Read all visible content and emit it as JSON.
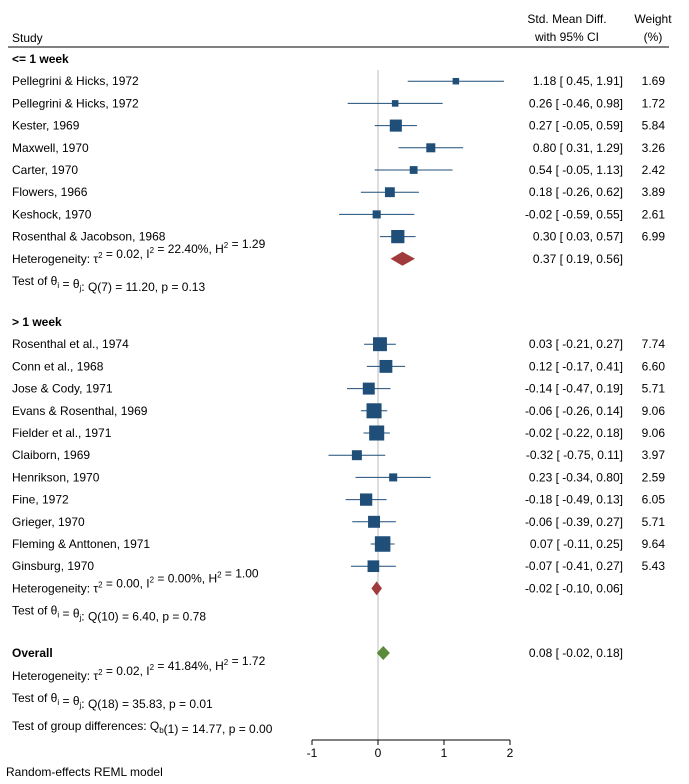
{
  "chart_data": {
    "type": "forest",
    "headers": {
      "study": "Study",
      "effect_line1": "Std. Mean Diff.",
      "effect_line2": "with 95% CI",
      "weight_line1": "Weight",
      "weight_line2": "(%)"
    },
    "x_axis": {
      "min": -1,
      "max": 2,
      "ticks": [
        "-1",
        "0",
        "1",
        "2"
      ],
      "reference_line": 0
    },
    "groups": [
      {
        "label": "<= 1 week",
        "studies": [
          {
            "name": "Pellegrini & Hicks, 1972",
            "est": 1.18,
            "lo": 0.45,
            "hi": 1.91,
            "ci_text": "1.18 [  0.45,  1.91]",
            "weight": "1.69"
          },
          {
            "name": "Pellegrini & Hicks, 1972",
            "est": 0.26,
            "lo": -0.46,
            "hi": 0.98,
            "ci_text": "0.26 [ -0.46,  0.98]",
            "weight": "1.72"
          },
          {
            "name": "Kester, 1969",
            "est": 0.27,
            "lo": -0.05,
            "hi": 0.59,
            "ci_text": "0.27 [ -0.05,  0.59]",
            "weight": "5.84"
          },
          {
            "name": "Maxwell, 1970",
            "est": 0.8,
            "lo": 0.31,
            "hi": 1.29,
            "ci_text": "0.80 [  0.31,  1.29]",
            "weight": "3.26"
          },
          {
            "name": "Carter, 1970",
            "est": 0.54,
            "lo": -0.05,
            "hi": 1.13,
            "ci_text": "0.54 [ -0.05,  1.13]",
            "weight": "2.42"
          },
          {
            "name": "Flowers, 1966",
            "est": 0.18,
            "lo": -0.26,
            "hi": 0.62,
            "ci_text": "0.18 [ -0.26,  0.62]",
            "weight": "3.89"
          },
          {
            "name": "Keshock, 1970",
            "est": -0.02,
            "lo": -0.59,
            "hi": 0.55,
            "ci_text": "-0.02 [ -0.59,  0.55]",
            "weight": "2.61"
          },
          {
            "name": "Rosenthal & Jacobson, 1968",
            "est": 0.3,
            "lo": 0.03,
            "hi": 0.57,
            "ci_text": "0.30 [  0.03,  0.57]",
            "weight": "6.99"
          }
        ],
        "heterogeneity": {
          "prefix": "Heterogeneity: τ",
          "tau2": "= 0.02, I",
          "i2": "= 22.40%, H",
          "h2": "= 1.29"
        },
        "pooled": {
          "est": 0.37,
          "lo": 0.19,
          "hi": 0.56,
          "ci_text": "0.37 [  0.19,  0.56]",
          "color": "#a03a3c"
        },
        "test": {
          "prefix": "Test of θ",
          "mid": " = θ",
          "rest": ": Q(7) = 11.20, p = 0.13"
        }
      },
      {
        "label": "> 1 week",
        "studies": [
          {
            "name": "Rosenthal et al., 1974",
            "est": 0.03,
            "lo": -0.21,
            "hi": 0.27,
            "ci_text": "0.03 [ -0.21,  0.27]",
            "weight": "7.74"
          },
          {
            "name": "Conn et al., 1968",
            "est": 0.12,
            "lo": -0.17,
            "hi": 0.41,
            "ci_text": "0.12 [ -0.17,  0.41]",
            "weight": "6.60"
          },
          {
            "name": "Jose & Cody, 1971",
            "est": -0.14,
            "lo": -0.47,
            "hi": 0.19,
            "ci_text": "-0.14 [ -0.47,  0.19]",
            "weight": "5.71"
          },
          {
            "name": "Evans & Rosenthal, 1969",
            "est": -0.06,
            "lo": -0.26,
            "hi": 0.14,
            "ci_text": "-0.06 [ -0.26,  0.14]",
            "weight": "9.06"
          },
          {
            "name": "Fielder et al., 1971",
            "est": -0.02,
            "lo": -0.22,
            "hi": 0.18,
            "ci_text": "-0.02 [ -0.22,  0.18]",
            "weight": "9.06"
          },
          {
            "name": "Claiborn, 1969",
            "est": -0.32,
            "lo": -0.75,
            "hi": 0.11,
            "ci_text": "-0.32 [ -0.75,  0.11]",
            "weight": "3.97"
          },
          {
            "name": "Henrikson, 1970",
            "est": 0.23,
            "lo": -0.34,
            "hi": 0.8,
            "ci_text": "0.23 [ -0.34,  0.80]",
            "weight": "2.59"
          },
          {
            "name": "Fine, 1972",
            "est": -0.18,
            "lo": -0.49,
            "hi": 0.13,
            "ci_text": "-0.18 [ -0.49,  0.13]",
            "weight": "6.05"
          },
          {
            "name": "Grieger, 1970",
            "est": -0.06,
            "lo": -0.39,
            "hi": 0.27,
            "ci_text": "-0.06 [ -0.39,  0.27]",
            "weight": "5.71"
          },
          {
            "name": "Fleming & Anttonen, 1971",
            "est": 0.07,
            "lo": -0.11,
            "hi": 0.25,
            "ci_text": "0.07 [ -0.11,  0.25]",
            "weight": "9.64"
          },
          {
            "name": "Ginsburg, 1970",
            "est": -0.07,
            "lo": -0.41,
            "hi": 0.27,
            "ci_text": "-0.07 [ -0.41,  0.27]",
            "weight": "5.43"
          }
        ],
        "heterogeneity": {
          "prefix": "Heterogeneity: τ",
          "tau2": "= 0.00, I",
          "i2": "= 0.00%, H",
          "h2": "= 1.00"
        },
        "pooled": {
          "est": -0.02,
          "lo": -0.1,
          "hi": 0.06,
          "ci_text": "-0.02 [ -0.10,  0.06]",
          "color": "#a03a3c"
        },
        "test": {
          "prefix": "Test of θ",
          "mid": " = θ",
          "rest": ": Q(10) = 6.40, p = 0.78"
        }
      }
    ],
    "overall": {
      "label": "Overall",
      "est": 0.08,
      "lo": -0.02,
      "hi": 0.18,
      "ci_text": "0.08 [ -0.02,  0.18]",
      "color": "#5a8a3a",
      "heterogeneity": {
        "prefix": "Heterogeneity: τ",
        "tau2": "= 0.02, I",
        "i2": "= 41.84%, H",
        "h2": "= 1.72"
      },
      "test": {
        "prefix": "Test of θ",
        "mid": " = θ",
        "rest": ": Q(18) = 35.83, p = 0.01"
      }
    },
    "group_diff": {
      "prefix": "Test of group differences: Q",
      "sub": "b",
      "rest": "(1) = 14.77, p = 0.00"
    },
    "sup_two": "2",
    "sub_i": "i",
    "sub_j": "j",
    "footnote": "Random-effects REML model",
    "colors": {
      "study_marker": "#1f4e79",
      "ci_line": "#1f4e79",
      "axis": "#000000",
      "ref_line": "#bdbdbd"
    }
  }
}
